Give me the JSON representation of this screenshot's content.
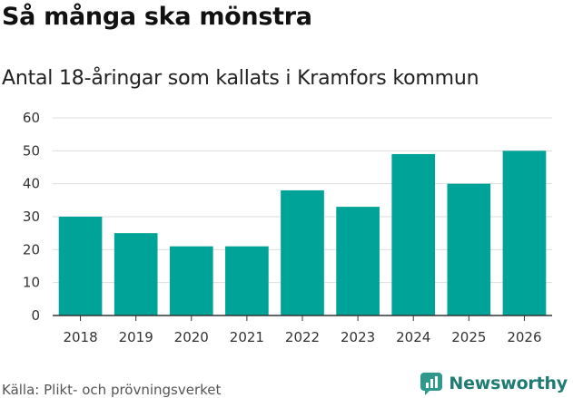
{
  "header": {
    "title": "Så många ska mönstra",
    "subtitle": "Antal 18-åringar som kallats i Kramfors kommun"
  },
  "footer": {
    "source": "Källa: Plikt- och prövningsverket",
    "brand": "Newsworthy"
  },
  "colors": {
    "bar": "#00a398",
    "grid": "#dddddd",
    "axis": "#333333",
    "brand": "#1f7c74"
  },
  "chart_data": {
    "type": "bar",
    "title": "Så många ska mönstra",
    "subtitle": "Antal 18-åringar som kallats i Kramfors kommun",
    "xlabel": "",
    "ylabel": "",
    "categories": [
      "2018",
      "2019",
      "2020",
      "2021",
      "2022",
      "2023",
      "2024",
      "2025",
      "2026"
    ],
    "values": [
      30,
      25,
      21,
      21,
      38,
      33,
      49,
      40,
      50
    ],
    "ylim": [
      0,
      60
    ],
    "yticks": [
      0,
      10,
      20,
      30,
      40,
      50,
      60
    ],
    "grid": true,
    "legend": "none"
  }
}
